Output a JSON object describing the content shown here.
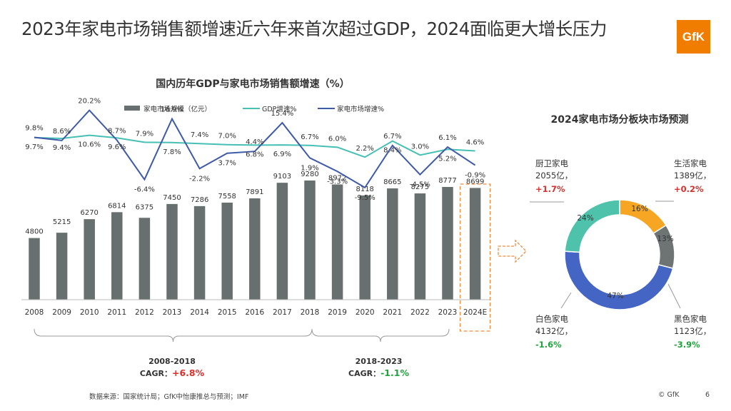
{
  "headline": "2023年家电市场销售额增速近六年来首次超过GDP，2024面临更大增长压力",
  "logo": "GfK",
  "footer": {
    "source": "数据来源：国家统计局；GfK中怡康推总与预测；IMF",
    "copyright": "© GfK",
    "page": "6"
  },
  "colors": {
    "bar": "#68706f",
    "gdp_line": "#46c0b4",
    "market_line": "#3e5aa8",
    "positive": "#d9302c",
    "negative": "#1fa33c",
    "forecast_box": "#f08a3c",
    "donut_white": "#4565c4",
    "donut_black": "#6e7473",
    "donut_life": "#f6a623",
    "donut_kitchen": "#4fc2ac"
  },
  "chart_data": [
    {
      "type": "bar+line",
      "title": "国内历年GDP与家电市场销售额增速（%）",
      "legend": [
        "家电市场规模（亿元）",
        "GDP增速%",
        "家电市场增速%"
      ],
      "categories": [
        "2008",
        "2009",
        "2010",
        "2011",
        "2012",
        "2013",
        "2014",
        "2015",
        "2016",
        "2017",
        "2018",
        "2019",
        "2020",
        "2021",
        "2022",
        "2023",
        "2024E"
      ],
      "series": [
        {
          "name": "家电市场规模（亿元）",
          "kind": "bar",
          "values": [
            4800,
            5215,
            6270,
            6814,
            6375,
            7450,
            7286,
            7558,
            7891,
            9103,
            9280,
            8972,
            8118,
            8665,
            8275,
            8777,
            8699
          ]
        },
        {
          "name": "GDP增速%",
          "kind": "line",
          "values": [
            9.7,
            9.4,
            10.6,
            9.6,
            7.9,
            7.8,
            7.4,
            7.0,
            6.8,
            6.9,
            6.7,
            6.0,
            2.2,
            8.4,
            3.0,
            5.2,
            4.6
          ]
        },
        {
          "name": "家电市场增速%",
          "kind": "line",
          "values": [
            9.8,
            8.6,
            20.2,
            8.7,
            -6.4,
            16.9,
            -2.2,
            3.7,
            4.4,
            15.4,
            1.9,
            -3.3,
            -9.5,
            6.7,
            -4.5,
            6.1,
            -0.9
          ]
        }
      ],
      "labels": {
        "bar": [
          "4800",
          "5215",
          "6270",
          "6814",
          "6375",
          "7450",
          "7286",
          "7558",
          "7891",
          "9103",
          "9280",
          "8972",
          "8118",
          "8665",
          "8275",
          "8777",
          "8699"
        ],
        "gdp": [
          "9.7%",
          "9.4%",
          "10.6%",
          "9.6%",
          "7.9%",
          "7.8%",
          "7.4%",
          "7.0%",
          "6.8%",
          "6.9%",
          "6.7%",
          "6.0%",
          "2.2%",
          "8.4%",
          "3.0%",
          "5.2%",
          "4.6%"
        ],
        "market": [
          "9.8%",
          "8.6%",
          "20.2%",
          "8.7%",
          "-6.4%",
          "16.9%",
          "-2.2%",
          "3.7%",
          "4.4%",
          "15.4%",
          "1.9%",
          "-3.3%",
          "-9.5%",
          "6.7%",
          "-4.5%",
          "6.1%",
          "-0.9%"
        ]
      },
      "bar_ylim": [
        0,
        10000
      ],
      "line_ylim": [
        -12,
        22
      ],
      "forecast_category": "2024E",
      "cagr_groups": [
        {
          "period": "2008-2018",
          "label": "CAGR：",
          "value": "+6.8%",
          "sign": "positive"
        },
        {
          "period": "2018-2023",
          "label": "CAGR：",
          "value": "-1.1%",
          "sign": "negative"
        }
      ]
    },
    {
      "type": "pie",
      "title": "2024家电市场分板块市场预测",
      "slices": [
        {
          "name": "生活家电",
          "amount": "1389亿，",
          "change": "+0.2%",
          "sign": "positive",
          "value": 16,
          "label": "16%",
          "color": "#f6a623"
        },
        {
          "name": "黑色家电",
          "amount": "1123亿，",
          "change": "-3.9%",
          "sign": "negative",
          "value": 13,
          "label": "13%",
          "color": "#6e7473"
        },
        {
          "name": "白色家电",
          "amount": "4132亿，",
          "change": "-1.6%",
          "sign": "negative",
          "value": 47,
          "label": "47%",
          "color": "#4565c4"
        },
        {
          "name": "厨卫家电",
          "amount": "2055亿，",
          "change": "+1.7%",
          "sign": "positive",
          "value": 24,
          "label": "24%",
          "color": "#4fc2ac"
        }
      ]
    }
  ]
}
